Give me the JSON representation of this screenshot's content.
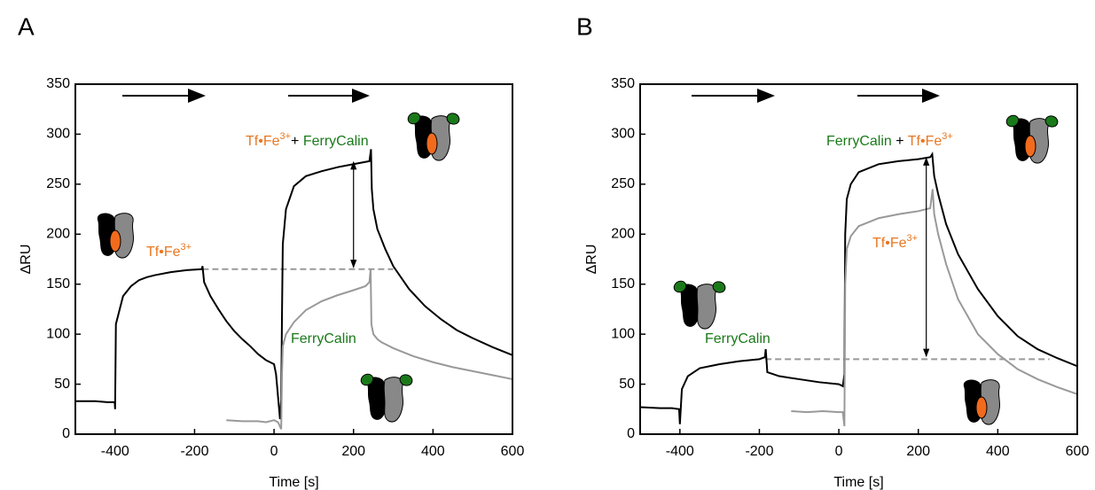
{
  "chart_data": [
    {
      "type": "line",
      "panel": "A",
      "x_label": "Time [s]",
      "y_label": "ΔRU",
      "xlim": [
        -500,
        600
      ],
      "ylim": [
        0,
        350
      ],
      "xticks": [
        -400,
        -200,
        0,
        200,
        400,
        600
      ],
      "yticks": [
        0,
        50,
        100,
        150,
        200,
        250,
        300,
        350
      ],
      "series": [
        {
          "color": "#000000",
          "x": [
            -500,
            -450,
            -420,
            -401,
            -400,
            -398,
            -380,
            -360,
            -340,
            -320,
            -300,
            -260,
            -220,
            -182,
            -180,
            -176,
            -160,
            -140,
            -120,
            -100,
            -80,
            -60,
            -40,
            -20,
            0,
            5,
            15,
            18,
            20,
            22,
            30,
            50,
            80,
            120,
            160,
            200,
            240,
            244,
            246,
            250,
            260,
            280,
            300,
            340,
            380,
            420,
            460,
            500,
            550,
            600
          ],
          "values": [
            33,
            33,
            32,
            32,
            25,
            110,
            138,
            148,
            154,
            157,
            159,
            162,
            164,
            165,
            168,
            152,
            138,
            125,
            113,
            103,
            95,
            88,
            80,
            74,
            70,
            60,
            15,
            35,
            120,
            190,
            225,
            248,
            258,
            263,
            267,
            270,
            273,
            285,
            245,
            225,
            205,
            185,
            168,
            145,
            128,
            115,
            104,
            96,
            87,
            79
          ]
        },
        {
          "color": "#999999",
          "x": [
            -120,
            -80,
            -40,
            -20,
            0,
            10,
            18,
            20,
            22,
            30,
            50,
            80,
            120,
            160,
            200,
            230,
            240,
            243,
            245,
            250,
            260,
            270,
            300,
            350,
            400,
            450,
            500,
            550,
            600
          ],
          "values": [
            14,
            13,
            13,
            12,
            14,
            12,
            5,
            60,
            88,
            100,
            112,
            124,
            133,
            139,
            144,
            148,
            152,
            165,
            110,
            100,
            95,
            92,
            86,
            78,
            72,
            67,
            63,
            59,
            55
          ]
        }
      ],
      "reference_line": {
        "y": 165,
        "x": [
          -180,
          300
        ],
        "color": "#999999"
      },
      "difference_arrow": {
        "x": 200,
        "y": [
          167,
          272
        ]
      },
      "annotations": [
        [
          {
            "text": "Tf•Fe",
            "color": "#e87722"
          },
          {
            "text": "3+",
            "color": "#e87722",
            "superscript": true
          }
        ],
        [
          {
            "text": "Tf•Fe",
            "color": "#e87722"
          },
          {
            "text": "3+",
            "color": "#e87722",
            "superscript": true
          },
          {
            "text": "+ ",
            "color": "#000000"
          },
          {
            "text": "FerryCalin",
            "color": "#1a7a1a"
          }
        ],
        [
          {
            "text": "FerryCalin",
            "color": "#1a7a1a"
          }
        ]
      ]
    },
    {
      "type": "line",
      "panel": "B",
      "x_label": "Time [s]",
      "y_label": "ΔRU",
      "xlim": [
        -500,
        600
      ],
      "ylim": [
        0,
        350
      ],
      "xticks": [
        -400,
        -200,
        0,
        200,
        400,
        600
      ],
      "yticks": [
        0,
        50,
        100,
        150,
        200,
        250,
        300,
        350
      ],
      "series": [
        {
          "color": "#000000",
          "x": [
            -500,
            -450,
            -420,
            -402,
            -400,
            -395,
            -380,
            -350,
            -300,
            -250,
            -200,
            -186,
            -184,
            -180,
            -150,
            -100,
            -50,
            0,
            10,
            14,
            16,
            20,
            30,
            50,
            100,
            150,
            200,
            230,
            235,
            240,
            250,
            270,
            300,
            350,
            400,
            450,
            500,
            550,
            600
          ],
          "values": [
            27,
            26,
            26,
            25,
            10,
            45,
            58,
            66,
            70,
            73,
            75,
            77,
            85,
            62,
            58,
            55,
            52,
            50,
            48,
            60,
            200,
            235,
            250,
            262,
            270,
            273,
            275,
            277,
            280,
            258,
            240,
            210,
            180,
            145,
            118,
            98,
            85,
            76,
            68
          ]
        },
        {
          "color": "#999999",
          "x": [
            -120,
            -80,
            -40,
            0,
            10,
            14,
            16,
            20,
            30,
            50,
            100,
            150,
            200,
            230,
            236,
            240,
            250,
            270,
            300,
            350,
            400,
            450,
            500,
            550,
            600
          ],
          "values": [
            23,
            22,
            23,
            22,
            22,
            8,
            150,
            185,
            198,
            208,
            216,
            220,
            223,
            226,
            245,
            220,
            200,
            170,
            135,
            100,
            80,
            65,
            55,
            47,
            40
          ]
        }
      ],
      "reference_line": {
        "y": 75,
        "x": [
          -185,
          530
        ],
        "color": "#999999"
      },
      "difference_arrow": {
        "x": 220,
        "y": [
          78,
          276
        ]
      },
      "annotations": [
        [
          {
            "text": "FerryCalin",
            "color": "#1a7a1a"
          },
          {
            "text": " + ",
            "color": "#000000"
          },
          {
            "text": "Tf•Fe",
            "color": "#e87722"
          },
          {
            "text": "3+",
            "color": "#e87722",
            "superscript": true
          }
        ],
        [
          {
            "text": "Tf•Fe",
            "color": "#e87722"
          },
          {
            "text": "3+",
            "color": "#e87722",
            "superscript": true
          }
        ],
        [
          {
            "text": "FerryCalin",
            "color": "#1a7a1a"
          }
        ]
      ]
    }
  ]
}
